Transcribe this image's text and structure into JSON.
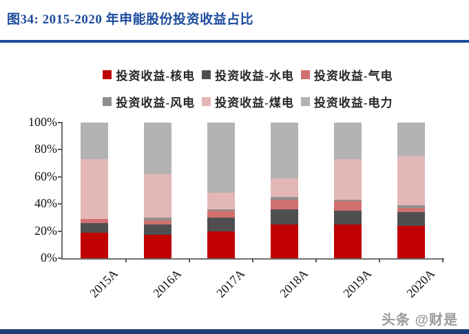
{
  "page": {
    "title": "图34: 2015-2020 年申能股份投资收益占比",
    "watermark": "头条 @财是"
  },
  "colors": {
    "title_blue": "#1C4B9C",
    "footer_blue": "#1E4078",
    "axis_gray": "#6e6e6e"
  },
  "chart_data": {
    "type": "bar",
    "subtype": "stacked-100-percent",
    "title": "图34: 2015-2020 年申能股份投资收益占比",
    "categories": [
      "2015A",
      "2016A",
      "2017A",
      "2018A",
      "2019A",
      "2020A"
    ],
    "series": [
      {
        "name": "投资收益-核电",
        "color": "#C00000",
        "values": [
          19,
          17,
          20,
          25,
          25,
          24
        ]
      },
      {
        "name": "投资收益-水电",
        "color": "#4F4F4F",
        "values": [
          7,
          8,
          10,
          11,
          10,
          10
        ]
      },
      {
        "name": "投资收益-气电",
        "color": "#D07170",
        "values": [
          3,
          3,
          5,
          7,
          7,
          3
        ]
      },
      {
        "name": "投资收益-风电",
        "color": "#8F8F8F",
        "values": [
          0,
          2,
          1,
          2,
          1,
          2
        ]
      },
      {
        "name": "投资收益-煤电",
        "color": "#E3B7B6",
        "values": [
          44,
          32,
          12,
          14,
          30,
          36
        ]
      },
      {
        "name": "投资收益-电力",
        "color": "#B3B3B3",
        "values": [
          27,
          38,
          52,
          41,
          27,
          25
        ]
      }
    ],
    "unit": "%",
    "ylim": [
      0,
      100
    ],
    "y_tick_step": 20,
    "y_tick_labels": [
      "0%",
      "20%",
      "40%",
      "60%",
      "80%",
      "100%"
    ],
    "legend_position": "top",
    "legend_rows": 3,
    "grid": false
  }
}
